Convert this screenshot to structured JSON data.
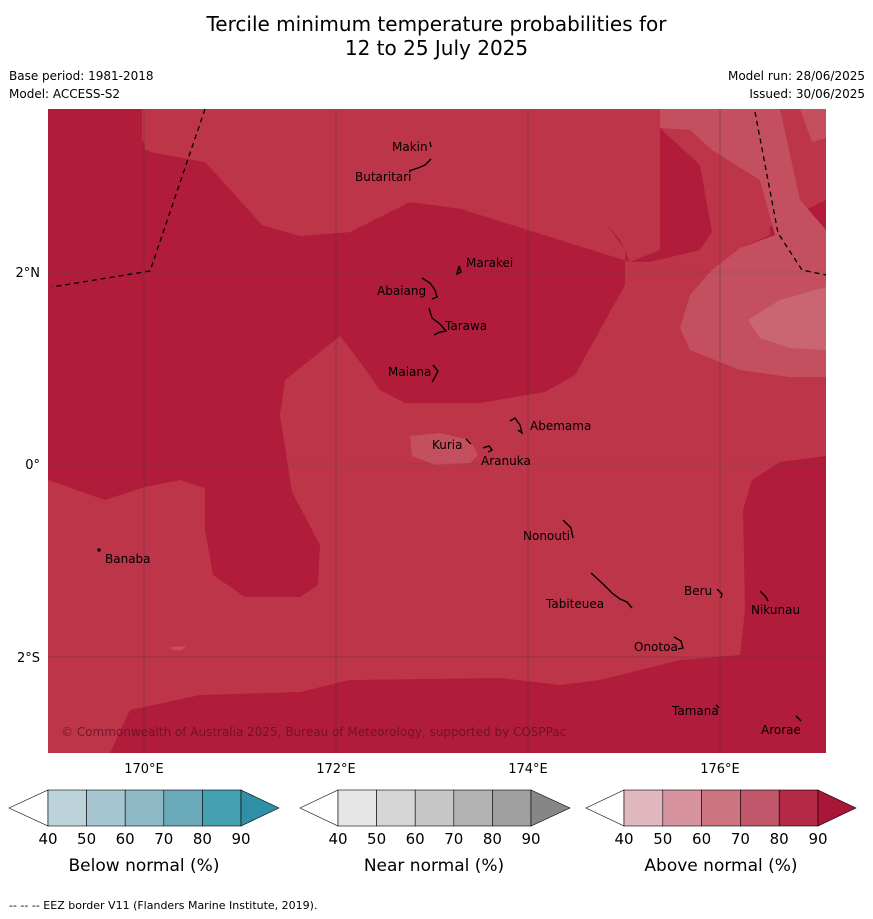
{
  "title_line1": "Tercile minimum temperature probabilities for",
  "title_line2": "12 to 25 July 2025",
  "base_period": "Base period: 1981-2018",
  "model": "Model: ACCESS-S2",
  "model_run": "Model run: 28/06/2025",
  "issued": "Issued: 30/06/2025",
  "copyright": "© Commonwealth of Australia 2025, Bureau of Meteorology, supported by COSPPac",
  "footer": "--  --  -- EEZ border V11 (Flanders Marine Institute, 2019).",
  "latitude_labels": [
    "2°N",
    "0°",
    "2°S"
  ],
  "longitude_labels": [
    "170°E",
    "172°E",
    "174°E",
    "176°E"
  ],
  "places": [
    "Makin",
    "Butaritari",
    "Marakei",
    "Abaiang",
    "Tarawa",
    "Maiana",
    "Abemama",
    "Kuria",
    "Aranuka",
    "Nonouti",
    "Banaba",
    "Tabiteuea",
    "Beru",
    "Nikunau",
    "Onotoa",
    "Tamana",
    "Arorae"
  ],
  "colorbars": [
    {
      "label": "Below normal (%)",
      "ticks": [
        "40",
        "50",
        "60",
        "70",
        "80",
        "90"
      ],
      "colors": [
        "#ffffff",
        "#bdd3da",
        "#a6c7d1",
        "#8db8c5",
        "#6aa9b9",
        "#45a0b2",
        "#2e8fa5"
      ]
    },
    {
      "label": "Near normal (%)",
      "ticks": [
        "40",
        "50",
        "60",
        "70",
        "80",
        "90"
      ],
      "colors": [
        "#ffffff",
        "#e6e6e6",
        "#d6d6d6",
        "#c6c6c6",
        "#b2b2b2",
        "#9f9f9f",
        "#868686"
      ]
    },
    {
      "label": "Above normal (%)",
      "ticks": [
        "40",
        "50",
        "60",
        "70",
        "80",
        "90"
      ],
      "colors": [
        "#ffffff",
        "#e2b8c0",
        "#d7939f",
        "#cc7580",
        "#c1576a",
        "#b42a44",
        "#a81638"
      ]
    }
  ],
  "map_colors": {
    "p80": "#bd3548",
    "p90": "#b11c3b",
    "p70": "#c4505f",
    "p60": "#c96672"
  }
}
